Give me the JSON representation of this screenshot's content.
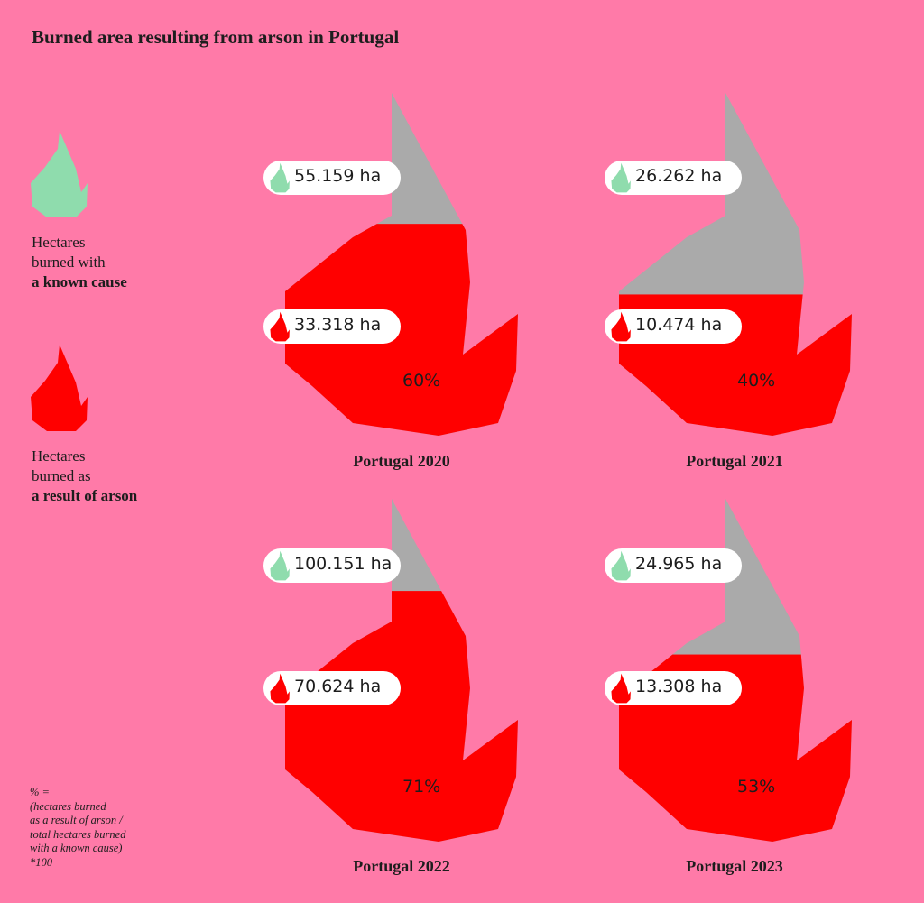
{
  "title": "Burned area resulting from arson in Portugal",
  "legend": {
    "known": {
      "line1": "Hectares",
      "line2": "burned with",
      "line3": "a known cause",
      "color": "#8fdcad",
      "icon": "flame-icon"
    },
    "arson": {
      "line1": "Hectares",
      "line2": "burned as",
      "line3": "a result of arson",
      "color": "#ff0000",
      "icon": "flame-icon"
    }
  },
  "colors": {
    "background": "#ff7aa8",
    "known_cause": "#aaaaaa",
    "arson": "#ff0000",
    "pill": "#ffffff"
  },
  "footnote": [
    "% =",
    "(hectares burned",
    "as a result of arson /",
    "total hectares burned",
    "with a known cause)",
    "*100"
  ],
  "chart_data": {
    "type": "area",
    "title": "Burned area resulting from arson in Portugal",
    "unit": "ha",
    "series": [
      {
        "name": "Hectares burned with a known cause",
        "values": [
          55159,
          26262,
          100151,
          24965
        ]
      },
      {
        "name": "Hectares burned as a result of arson",
        "values": [
          33318,
          10474,
          70624,
          13308
        ]
      }
    ],
    "categories": [
      "Portugal 2020",
      "Portugal 2021",
      "Portugal 2022",
      "Portugal 2023"
    ],
    "panels": [
      {
        "label": "Portugal 2020",
        "known": "55.159 ha",
        "arson": "33.318 ha",
        "percent": "60%",
        "ratio": 0.6
      },
      {
        "label": "Portugal 2021",
        "known": "26.262 ha",
        "arson": "10.474 ha",
        "percent": "40%",
        "ratio": 0.4
      },
      {
        "label": "Portugal 2022",
        "known": "100.151 ha",
        "arson": "70.624 ha",
        "percent": "71%",
        "ratio": 0.71
      },
      {
        "label": "Portugal 2023",
        "known": "24.965 ha",
        "arson": "13.308 ha",
        "percent": "53%",
        "ratio": 0.53
      }
    ]
  }
}
